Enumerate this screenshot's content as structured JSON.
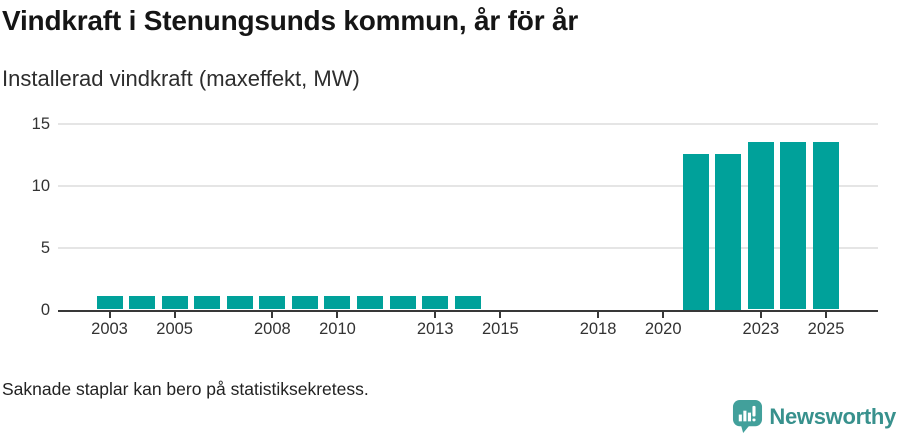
{
  "header": {
    "title": "Vindkraft i Stenungsunds kommun, år för år",
    "subtitle": "Installerad vindkraft (maxeffekt, MW)"
  },
  "chart_data": {
    "type": "bar",
    "title": "Vindkraft i Stenungsunds kommun, år för år",
    "subtitle": "Installerad vindkraft (maxeffekt, MW)",
    "ylabel": "Installerad vindkraft (maxeffekt, MW)",
    "xlabel": "",
    "unit": "MW",
    "x": [
      2003,
      2004,
      2005,
      2006,
      2007,
      2008,
      2009,
      2010,
      2011,
      2012,
      2013,
      2014,
      2015,
      2016,
      2017,
      2018,
      2019,
      2020,
      2021,
      2022,
      2023,
      2024,
      2025
    ],
    "values": [
      1.1,
      1.1,
      1.1,
      1.1,
      1.1,
      1.1,
      1.1,
      1.1,
      1.1,
      1.1,
      1.1,
      1.1,
      null,
      null,
      null,
      null,
      null,
      null,
      12.5,
      12.5,
      13.5,
      13.5,
      13.5
    ],
    "missing_years": [
      2015,
      2016,
      2017,
      2018,
      2019,
      2020
    ],
    "ylim": [
      0,
      15
    ],
    "yticks": [
      0,
      5,
      10,
      15
    ],
    "xticks": [
      2003,
      2005,
      2008,
      2010,
      2013,
      2015,
      2018,
      2020,
      2023,
      2025
    ],
    "grid": "horizontal",
    "legend": "none",
    "bar_color": "#00a19a"
  },
  "footer": {
    "note": "Saknade staplar kan bero på statistiksekretess."
  },
  "logo": {
    "brand": "Newsworthy",
    "icon": "newsworthy-speech-bubble-chart-icon",
    "icon_color": "#42a09b",
    "text_color": "#38918d"
  },
  "colors": {
    "background": "#ffffff",
    "bar": "#00a19a",
    "axis": "#383838",
    "grid": "#e5e5e5",
    "tick_label": "#333333",
    "title": "#151515",
    "subtitle": "#2d2d2d",
    "note": "#222222"
  }
}
